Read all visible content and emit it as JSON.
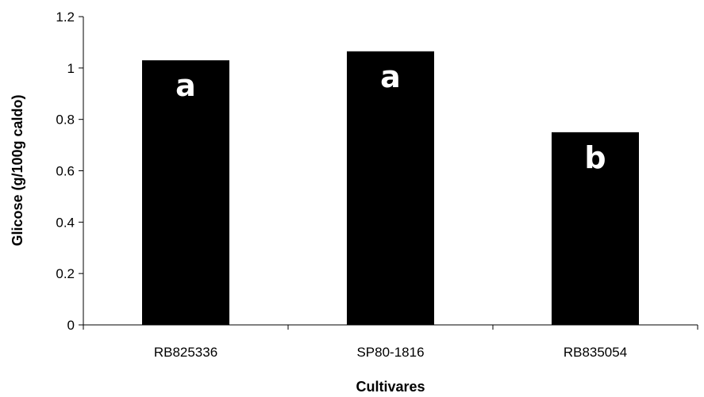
{
  "chart_data": {
    "type": "bar",
    "categories": [
      "RB825336",
      "SP80-1816",
      "RB835054"
    ],
    "values": [
      1.03,
      1.065,
      0.75
    ],
    "bar_labels": [
      "a",
      "a",
      "b"
    ],
    "title": "",
    "xlabel": "Cultivares",
    "ylabel": "Glicose (g/100g caldo)",
    "ylim": [
      0,
      1.2
    ],
    "yticks": [
      0,
      0.2,
      0.4,
      0.6,
      0.8,
      1,
      1.2
    ],
    "ytick_labels": [
      "0",
      "0.2",
      "0.4",
      "0.6",
      "0.8",
      "1",
      "1.2"
    ],
    "grid": false,
    "legend": "none",
    "bar_color": "#000000",
    "label_color": "#ffffff"
  }
}
